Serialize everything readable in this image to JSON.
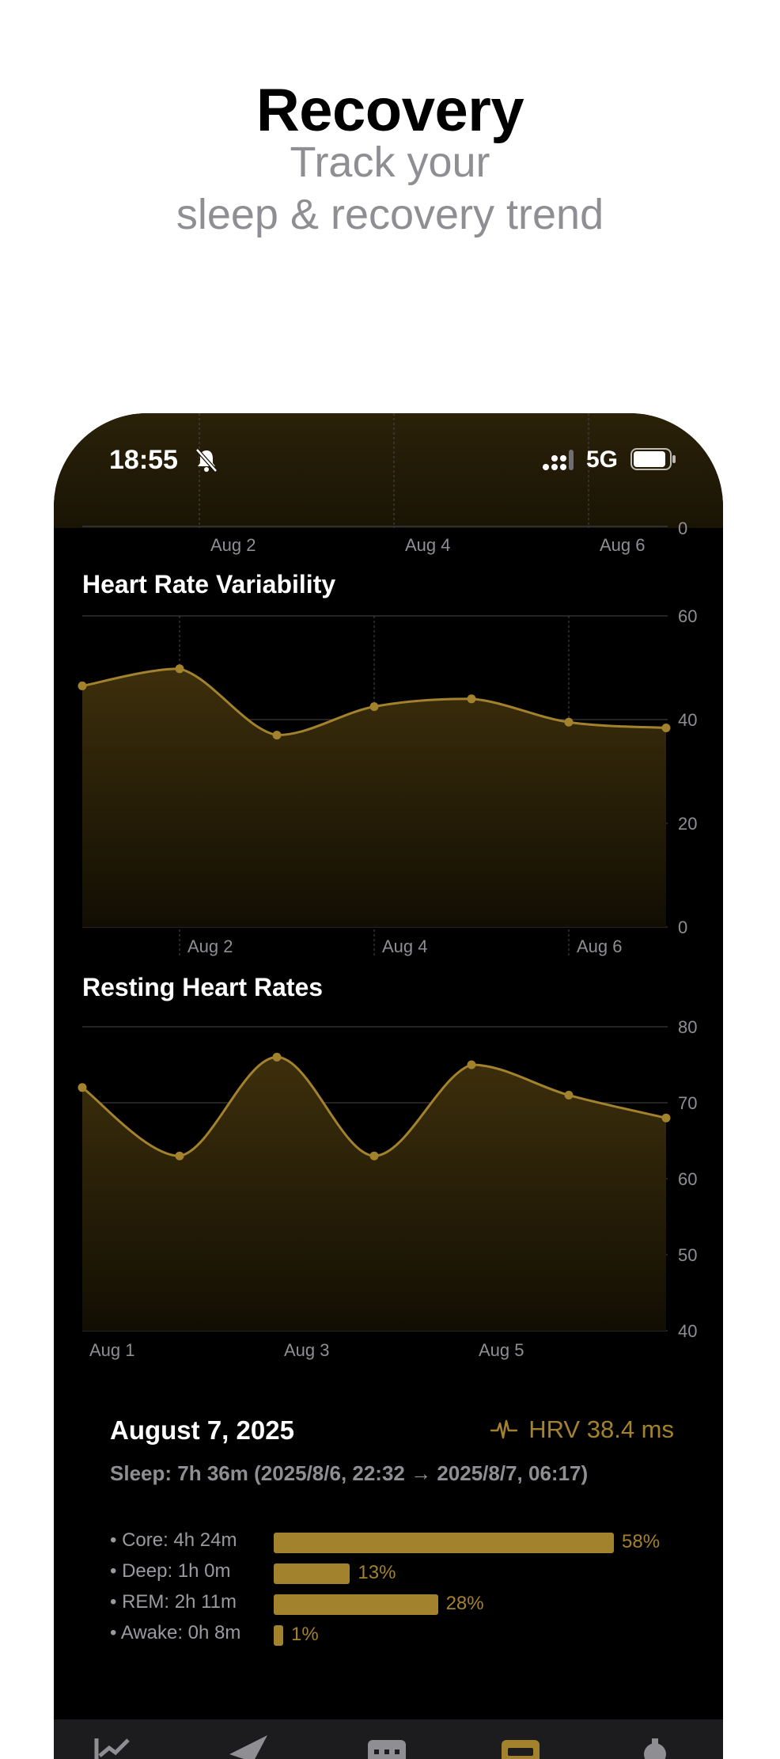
{
  "promo": {
    "title": "Recovery",
    "subtitle_line1": "Track your",
    "subtitle_line2": "sleep & recovery trend"
  },
  "status_bar": {
    "time": "18:55",
    "network": "5G",
    "icons": [
      "bell-slash-icon",
      "signal-icon",
      "battery-icon"
    ]
  },
  "top_chart_partial": {
    "y_tick": "0",
    "x_labels": [
      "Aug 2",
      "Aug 4",
      "Aug 6"
    ]
  },
  "colors": {
    "accent": "#a3822d",
    "background": "#000000",
    "secondary_text": "#8e8e93"
  },
  "chart_data": [
    {
      "type": "area",
      "title": "Heart Rate Variability",
      "x": [
        "Aug 1",
        "Aug 2",
        "Aug 3",
        "Aug 4",
        "Aug 5",
        "Aug 6",
        "Aug 7"
      ],
      "values": [
        46.5,
        49.8,
        37,
        42.5,
        44,
        39.5,
        38.4
      ],
      "ylim": [
        0,
        60
      ],
      "y_ticks": [
        "0",
        "20",
        "40",
        "60"
      ],
      "x_tick_labels": [
        "Aug 2",
        "Aug 4",
        "Aug 6"
      ],
      "grid": true
    },
    {
      "type": "area",
      "title": "Resting Heart Rates",
      "x": [
        "Aug 1",
        "Aug 2",
        "Aug 3",
        "Aug 4",
        "Aug 5",
        "Aug 6",
        "Aug 7"
      ],
      "values": [
        72,
        63,
        76,
        63,
        75,
        71,
        68
      ],
      "ylim": [
        40,
        80
      ],
      "y_ticks": [
        "40",
        "50",
        "60",
        "70",
        "80"
      ],
      "x_tick_labels": [
        "Aug 1",
        "Aug 3",
        "Aug 5"
      ],
      "grid": true
    }
  ],
  "summary": {
    "date": "August 7, 2025",
    "hrv": "HRV 38.4 ms",
    "sleep": "Sleep: 7h 36m (2025/8/6, 22:32 → 2025/8/7, 06:17)",
    "stages": [
      {
        "label": "• Core: 4h 24m",
        "pct": "58%",
        "fraction": 0.58
      },
      {
        "label": "• Deep: 1h 0m",
        "pct": "13%",
        "fraction": 0.13
      },
      {
        "label": "• REM: 2h 11m",
        "pct": "28%",
        "fraction": 0.28
      },
      {
        "label": "• Awake: 0h 8m",
        "pct": "1%",
        "fraction": 0.01
      }
    ]
  },
  "tab_bar": {
    "icons": [
      "charts-icon",
      "send-icon",
      "calendar-icon",
      "sleep-icon",
      "settings-icon"
    ],
    "selected": "sleep-icon"
  }
}
